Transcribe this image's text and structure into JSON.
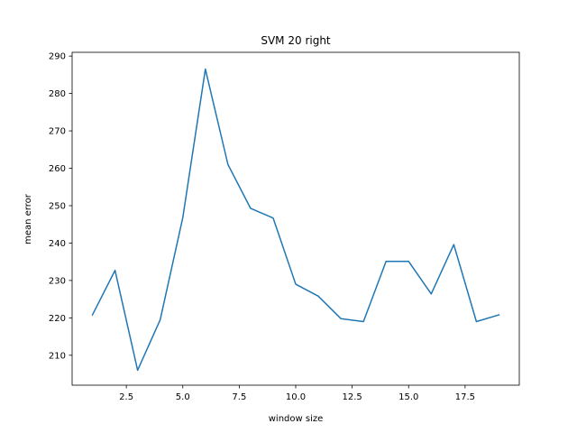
{
  "chart_data": {
    "type": "line",
    "title": "SVM 20 right",
    "xlabel": "window size",
    "ylabel": "mean error",
    "xlim": [
      0.1,
      19.9
    ],
    "ylim": [
      202,
      291
    ],
    "xticks": [
      2.5,
      5.0,
      7.5,
      10.0,
      12.5,
      15.0,
      17.5
    ],
    "xtick_labels": [
      "2.5",
      "5.0",
      "7.5",
      "10.0",
      "12.5",
      "15.0",
      "17.5"
    ],
    "yticks": [
      210,
      220,
      230,
      240,
      250,
      260,
      270,
      280,
      290
    ],
    "ytick_labels": [
      "210",
      "220",
      "230",
      "240",
      "250",
      "260",
      "270",
      "280",
      "290"
    ],
    "grid": false,
    "series": [
      {
        "color": "#1f77b4",
        "x": [
          1,
          2,
          3,
          4,
          5,
          6,
          7,
          8,
          9,
          10,
          11,
          12,
          13,
          14,
          15,
          16,
          17,
          18,
          19
        ],
        "y": [
          220.8,
          232.7,
          206.0,
          219.5,
          246.8,
          286.5,
          261.0,
          249.3,
          246.7,
          229.0,
          225.8,
          219.8,
          219.0,
          235.1,
          235.1,
          226.4,
          239.6,
          219.0,
          220.8
        ]
      }
    ]
  }
}
